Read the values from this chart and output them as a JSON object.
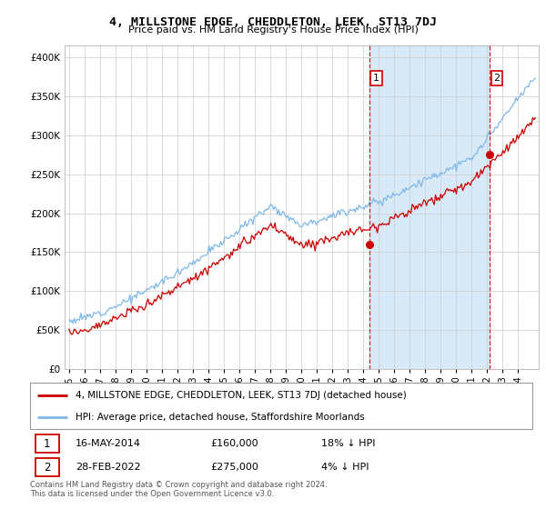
{
  "title": "4, MILLSTONE EDGE, CHEDDLETON, LEEK, ST13 7DJ",
  "subtitle": "Price paid vs. HM Land Registry's House Price Index (HPI)",
  "legend_line1": "4, MILLSTONE EDGE, CHEDDLETON, LEEK, ST13 7DJ (detached house)",
  "legend_line2": "HPI: Average price, detached house, Staffordshire Moorlands",
  "footnote1": "Contains HM Land Registry data © Crown copyright and database right 2024.",
  "footnote2": "This data is licensed under the Open Government Licence v3.0.",
  "sale1_date": "16-MAY-2014",
  "sale1_price": "£160,000",
  "sale1_note": "18% ↓ HPI",
  "sale2_date": "28-FEB-2022",
  "sale2_price": "£275,000",
  "sale2_note": "4% ↓ HPI",
  "sale1_year": 2014.37,
  "sale1_value": 160000,
  "sale2_year": 2022.16,
  "sale2_value": 275000,
  "hpi_color": "#7EB8E8",
  "price_color": "#CC0000",
  "shade_color": "#D8EAF8",
  "dashed_line_color": "#CC0000",
  "ylim_min": 0,
  "ylim_max": 415000,
  "ytick_values": [
    0,
    50000,
    100000,
    150000,
    200000,
    250000,
    300000,
    350000,
    400000
  ],
  "background_color": "#ffffff",
  "grid_color": "#cccccc",
  "xlim_min": 1994.7,
  "xlim_max": 2025.3
}
